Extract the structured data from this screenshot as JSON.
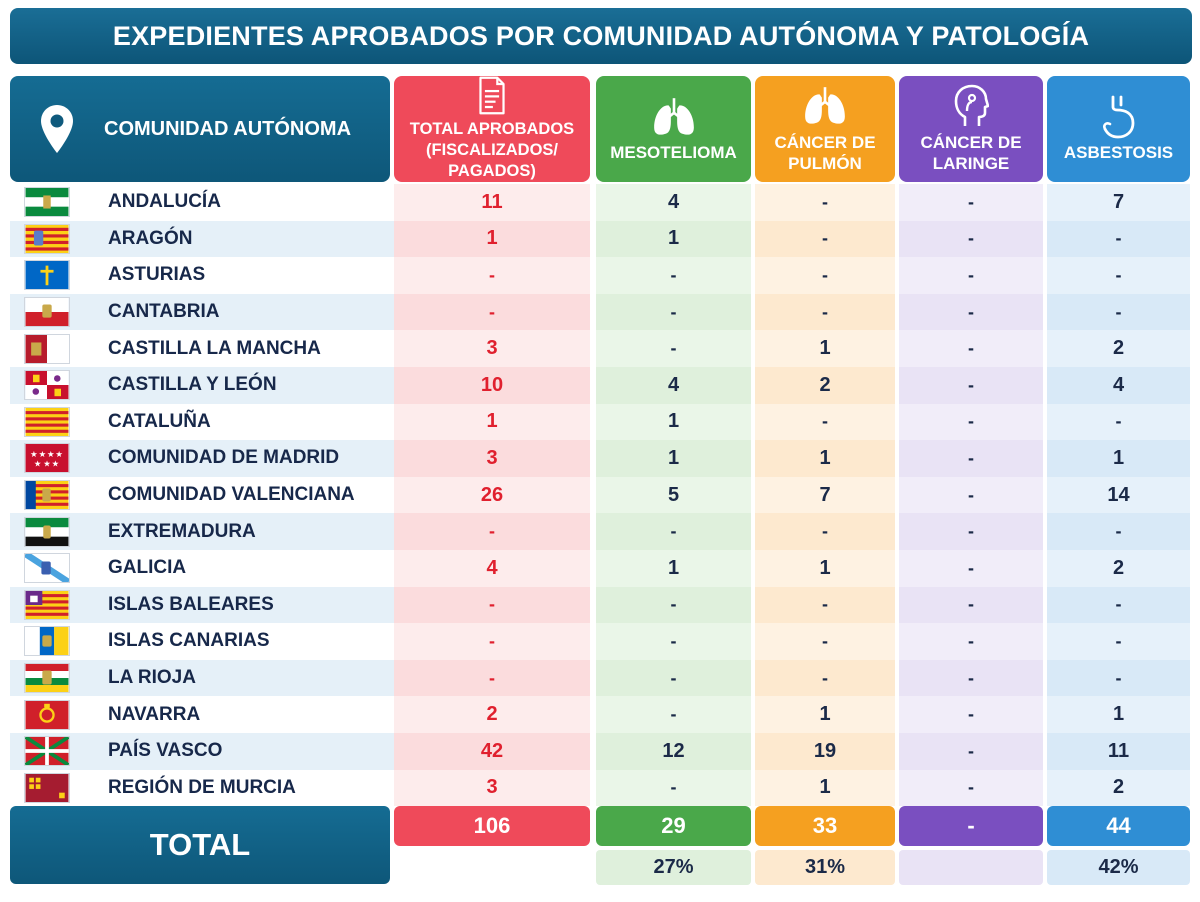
{
  "title": "EXPEDIENTES APROBADOS POR COMUNIDAD AUTÓNOMA Y PATOLOGÍA",
  "headers": {
    "region": "COMUNIDAD AUTÓNOMA",
    "total_line1": "TOTAL APROBADOS",
    "total_line2": "(FISCALIZADOS/",
    "total_line3": "PAGADOS)",
    "meso": "MESOTELIOMA",
    "pulmon_line1": "CÁNCER DE",
    "pulmon_line2": "PULMÓN",
    "laringe_line1": "CÁNCER DE",
    "laringe_line2": "LARINGE",
    "asb": "ASBESTOSIS"
  },
  "icons": {
    "region": "location-pin-icon",
    "total": "document-icon",
    "meso": "lungs-icon",
    "pulmon": "lungs-icon",
    "laringe": "head-profile-icon",
    "asb": "stomach-icon"
  },
  "colors": {
    "header_blue": "#0e5779",
    "total_red": "#ef4a5a",
    "meso_green": "#4aa84a",
    "pulmon_orange": "#f5a020",
    "laringe_purple": "#7a4fc0",
    "asb_blue": "#2f8ed4"
  },
  "chart_data": {
    "type": "table",
    "title": "EXPEDIENTES APROBADOS POR COMUNIDAD AUTÓNOMA Y PATOLOGÍA",
    "columns": [
      "COMUNIDAD AUTÓNOMA",
      "TOTAL APROBADOS (FISCALIZADOS/ PAGADOS)",
      "MESOTELIOMA",
      "CÁNCER DE PULMÓN",
      "CÁNCER DE LARINGE",
      "ASBESTOSIS"
    ],
    "rows": [
      {
        "region": "ANDALUCÍA",
        "flag": "andalucia",
        "total": "11",
        "meso": "4",
        "pulmon": "-",
        "laringe": "-",
        "asb": "7"
      },
      {
        "region": "ARAGÓN",
        "flag": "aragon",
        "total": "1",
        "meso": "1",
        "pulmon": "-",
        "laringe": "-",
        "asb": "-"
      },
      {
        "region": "ASTURIAS",
        "flag": "asturias",
        "total": "-",
        "meso": "-",
        "pulmon": "-",
        "laringe": "-",
        "asb": "-"
      },
      {
        "region": "CANTABRIA",
        "flag": "cantabria",
        "total": "-",
        "meso": "-",
        "pulmon": "-",
        "laringe": "-",
        "asb": "-"
      },
      {
        "region": "CASTILLA LA MANCHA",
        "flag": "castilla-la-mancha",
        "total": "3",
        "meso": "-",
        "pulmon": "1",
        "laringe": "-",
        "asb": "2"
      },
      {
        "region": "CASTILLA Y LEÓN",
        "flag": "castilla-y-leon",
        "total": "10",
        "meso": "4",
        "pulmon": "2",
        "laringe": "-",
        "asb": "4"
      },
      {
        "region": "CATALUÑA",
        "flag": "cataluna",
        "total": "1",
        "meso": "1",
        "pulmon": "-",
        "laringe": "-",
        "asb": "-"
      },
      {
        "region": "COMUNIDAD DE MADRID",
        "flag": "madrid",
        "total": "3",
        "meso": "1",
        "pulmon": "1",
        "laringe": "-",
        "asb": "1"
      },
      {
        "region": "COMUNIDAD VALENCIANA",
        "flag": "valencia",
        "total": "26",
        "meso": "5",
        "pulmon": "7",
        "laringe": "-",
        "asb": "14"
      },
      {
        "region": "EXTREMADURA",
        "flag": "extremadura",
        "total": "-",
        "meso": "-",
        "pulmon": "-",
        "laringe": "-",
        "asb": "-"
      },
      {
        "region": "GALICIA",
        "flag": "galicia",
        "total": "4",
        "meso": "1",
        "pulmon": "1",
        "laringe": "-",
        "asb": "2"
      },
      {
        "region": "ISLAS BALEARES",
        "flag": "baleares",
        "total": "-",
        "meso": "-",
        "pulmon": "-",
        "laringe": "-",
        "asb": "-"
      },
      {
        "region": "ISLAS CANARIAS",
        "flag": "canarias",
        "total": "-",
        "meso": "-",
        "pulmon": "-",
        "laringe": "-",
        "asb": "-"
      },
      {
        "region": "LA RIOJA",
        "flag": "la-rioja",
        "total": "-",
        "meso": "-",
        "pulmon": "-",
        "laringe": "-",
        "asb": "-"
      },
      {
        "region": "NAVARRA",
        "flag": "navarra",
        "total": "2",
        "meso": "-",
        "pulmon": "1",
        "laringe": "-",
        "asb": "1"
      },
      {
        "region": "PAÍS VASCO",
        "flag": "pais-vasco",
        "total": "42",
        "meso": "12",
        "pulmon": "19",
        "laringe": "-",
        "asb": "11"
      },
      {
        "region": "REGIÓN DE MURCIA",
        "flag": "murcia",
        "total": "3",
        "meso": "-",
        "pulmon": "1",
        "laringe": "-",
        "asb": "2"
      }
    ],
    "totals": {
      "label": "TOTAL",
      "total": "106",
      "meso": "29",
      "pulmon": "33",
      "laringe": "-",
      "asb": "44"
    },
    "percentages": {
      "meso": "27%",
      "pulmon": "31%",
      "laringe": "",
      "asb": "42%"
    }
  }
}
